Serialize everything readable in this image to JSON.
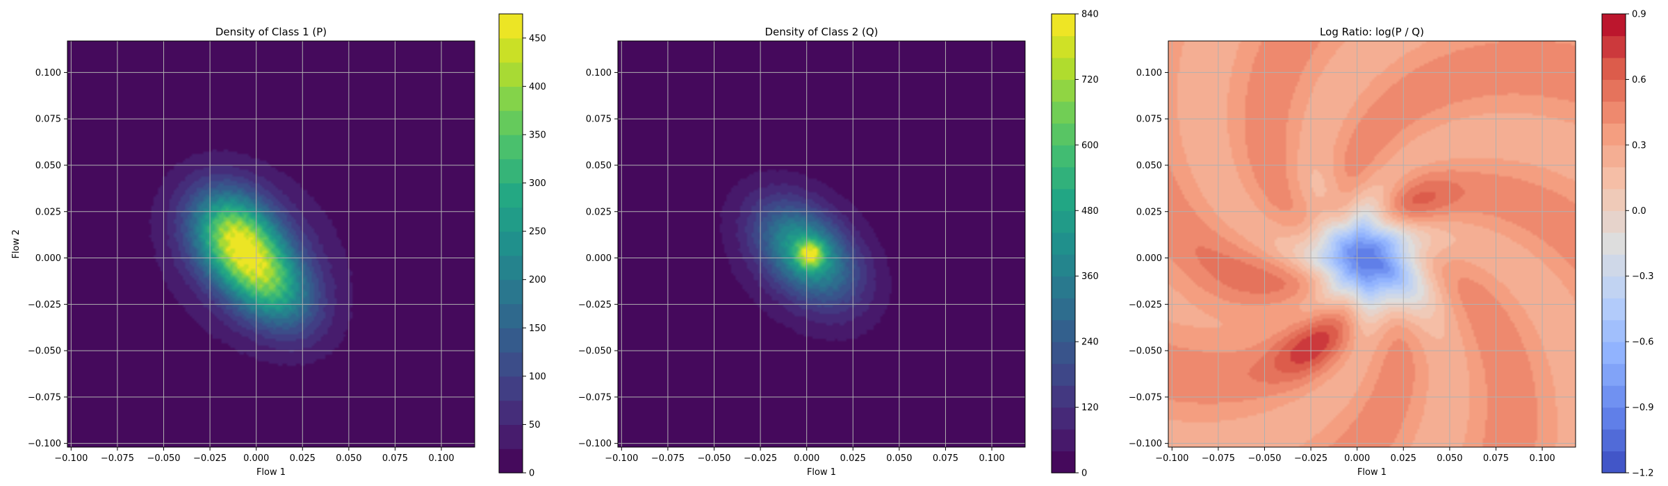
{
  "chart_data": [
    {
      "type": "heatmap",
      "title": "Density of Class 1 (P)",
      "xlabel": "Flow 1",
      "ylabel": "Flow 2",
      "xlim": [
        -0.102,
        0.118
      ],
      "ylim": [
        -0.102,
        0.117
      ],
      "x_ticks": [
        -0.1,
        -0.075,
        -0.05,
        -0.025,
        0.0,
        0.025,
        0.05,
        0.075,
        0.1
      ],
      "x_tick_labels": [
        "−0.100",
        "−0.075",
        "−0.050",
        "−0.025",
        "0.000",
        "0.025",
        "0.050",
        "0.075",
        "0.100"
      ],
      "y_ticks": [
        0.1,
        0.075,
        0.05,
        0.025,
        0.0,
        -0.025,
        -0.05,
        -0.075,
        -0.1
      ],
      "y_tick_labels": [
        "0.100",
        "0.075",
        "0.050",
        "0.025",
        "0.000",
        "−0.025",
        "−0.050",
        "−0.075",
        "−0.100"
      ],
      "grid": true,
      "colormap": "viridis",
      "colorbar": {
        "min": 0,
        "max": 475,
        "ticks": [
          0,
          50,
          100,
          150,
          200,
          250,
          300,
          350,
          400,
          450
        ],
        "tick_labels": [
          "0",
          "50",
          "100",
          "150",
          "200",
          "250",
          "300",
          "350",
          "400",
          "450"
        ],
        "levels": 19
      },
      "density_components": [
        {
          "x": -0.012,
          "y": 0.012,
          "sx": 0.018,
          "sy": 0.014,
          "rot_deg": -55,
          "peak": 300
        },
        {
          "x": 0.006,
          "y": -0.012,
          "sx": 0.02,
          "sy": 0.013,
          "rot_deg": -50,
          "peak": 250
        },
        {
          "x": -0.002,
          "y": 0.0,
          "sx": 0.036,
          "sy": 0.028,
          "rot_deg": -45,
          "peak": 90
        }
      ]
    },
    {
      "type": "heatmap",
      "title": "Density of Class 2 (Q)",
      "xlabel": "Flow 1",
      "ylabel": "",
      "xlim": [
        -0.102,
        0.118
      ],
      "ylim": [
        -0.102,
        0.117
      ],
      "x_ticks": [
        -0.1,
        -0.075,
        -0.05,
        -0.025,
        0.0,
        0.025,
        0.05,
        0.075,
        0.1
      ],
      "x_tick_labels": [
        "−0.100",
        "−0.075",
        "−0.050",
        "−0.025",
        "0.000",
        "0.025",
        "0.050",
        "0.075",
        "0.100"
      ],
      "y_ticks": [
        0.1,
        0.075,
        0.05,
        0.025,
        0.0,
        -0.025,
        -0.05,
        -0.075,
        -0.1
      ],
      "y_tick_labels": [
        "0.100",
        "0.075",
        "0.050",
        "0.025",
        "0.000",
        "−0.025",
        "−0.050",
        "−0.075",
        "−0.100"
      ],
      "grid": true,
      "colormap": "viridis",
      "colorbar": {
        "min": 0,
        "max": 840,
        "ticks": [
          0,
          120,
          240,
          360,
          480,
          600,
          720,
          840
        ],
        "tick_labels": [
          "0",
          "120",
          "240",
          "360",
          "480",
          "600",
          "720",
          "840"
        ],
        "levels": 21
      },
      "density_components": [
        {
          "x": 0.002,
          "y": 0.002,
          "sx": 0.005,
          "sy": 0.005,
          "rot_deg": 0,
          "peak": 380
        },
        {
          "x": 0.0,
          "y": 0.003,
          "sx": 0.02,
          "sy": 0.013,
          "rot_deg": -45,
          "peak": 400
        },
        {
          "x": -0.001,
          "y": 0.0,
          "sx": 0.033,
          "sy": 0.024,
          "rot_deg": -45,
          "peak": 110
        }
      ]
    },
    {
      "type": "heatmap",
      "title": "Log Ratio: log(P / Q)",
      "xlabel": "Flow 1",
      "ylabel": "",
      "xlim": [
        -0.102,
        0.118
      ],
      "ylim": [
        -0.102,
        0.117
      ],
      "x_ticks": [
        -0.1,
        -0.075,
        -0.05,
        -0.025,
        0.0,
        0.025,
        0.05,
        0.075,
        0.1
      ],
      "x_tick_labels": [
        "−0.100",
        "−0.075",
        "−0.050",
        "−0.025",
        "0.000",
        "0.025",
        "0.050",
        "0.075",
        "0.100"
      ],
      "y_ticks": [
        0.1,
        0.075,
        0.05,
        0.025,
        0.0,
        -0.025,
        -0.05,
        -0.075,
        -0.1
      ],
      "y_tick_labels": [
        "0.100",
        "0.075",
        "0.050",
        "0.025",
        "0.000",
        "−0.025",
        "−0.050",
        "−0.075",
        "−0.100"
      ],
      "grid": true,
      "colormap": "coolwarm",
      "colorbar": {
        "min": -1.2,
        "max": 0.9,
        "ticks": [
          -1.2,
          -0.9,
          -0.6,
          -0.3,
          0.0,
          0.3,
          0.6,
          0.9
        ],
        "tick_labels": [
          "−1.2",
          "−0.9",
          "−0.6",
          "−0.3",
          "0.0",
          "0.3",
          "0.6",
          "0.9"
        ],
        "levels": 21
      },
      "background_value": 0.35,
      "ratio_features": [
        {
          "x": 0.005,
          "y": 0.0,
          "sx": 0.022,
          "sy": 0.016,
          "rot_deg": -35,
          "amp": -1.35
        },
        {
          "x": -0.015,
          "y": 0.022,
          "sx": 0.011,
          "sy": 0.008,
          "rot_deg": -30,
          "amp": 0.35
        },
        {
          "x": -0.025,
          "y": -0.048,
          "sx": 0.016,
          "sy": 0.01,
          "rot_deg": 30,
          "amp": 0.3
        },
        {
          "x": 0.03,
          "y": 0.03,
          "sx": 0.016,
          "sy": 0.01,
          "rot_deg": 30,
          "amp": 0.2
        },
        {
          "x": -0.06,
          "y": -0.02,
          "sx": 0.03,
          "sy": 0.02,
          "rot_deg": 0,
          "amp": 0.1
        }
      ]
    }
  ]
}
